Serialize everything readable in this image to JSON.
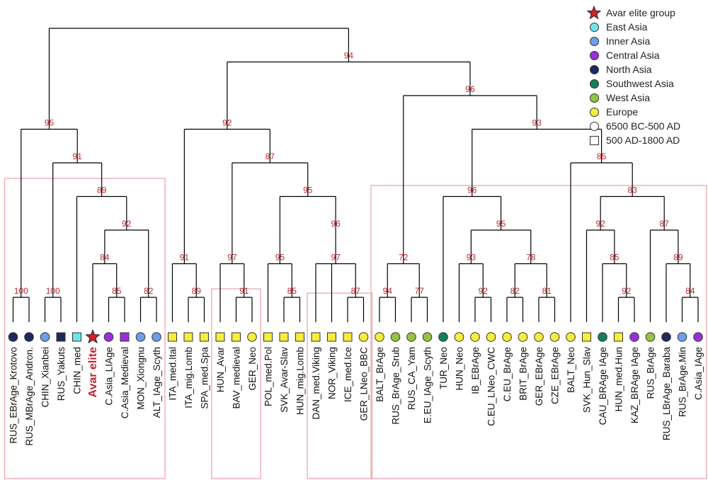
{
  "colors": {
    "East Asia": "#6fe3ee",
    "Inner Asia": "#6f9ee8",
    "Central Asia": "#9a2fd8",
    "North Asia": "#1d2a5e",
    "Southwest Asia": "#13805e",
    "West Asia": "#93c443",
    "Europe": "#f5ee3a",
    "star": "#d61f26",
    "label_red": "#c0262d",
    "box": "#e8a1a8",
    "line": "#000000"
  },
  "legend": [
    {
      "label": "Avar elite group",
      "symbol": "star",
      "icon": "star-icon"
    },
    {
      "label": "East Asia",
      "symbol": "circle",
      "region": "East Asia"
    },
    {
      "label": "Inner Asia",
      "symbol": "circle",
      "region": "Inner Asia"
    },
    {
      "label": "Central Asia",
      "symbol": "circle",
      "region": "Central Asia"
    },
    {
      "label": "North Asia",
      "symbol": "circle",
      "region": "North Asia"
    },
    {
      "label": "Southwest Asia",
      "symbol": "circle",
      "region": "Southwest Asia"
    },
    {
      "label": "West Asia",
      "symbol": "circle",
      "region": "West Asia"
    },
    {
      "label": "Europe",
      "symbol": "circle",
      "region": "Europe"
    },
    {
      "label": "6500 BC-500 AD",
      "symbol": "open-circle"
    },
    {
      "label": "500 AD-1800 AD",
      "symbol": "open-square"
    }
  ],
  "leaves": [
    {
      "id": "L1",
      "label": "RUS_EBrAge_Krotovo",
      "region": "North Asia",
      "shape": "circle"
    },
    {
      "id": "L2",
      "label": "RUS_MBrAge_Andron.",
      "region": "North Asia",
      "shape": "circle"
    },
    {
      "id": "L3",
      "label": "CHIN_Xianbei",
      "region": "Inner Asia",
      "shape": "circle"
    },
    {
      "id": "L4",
      "label": "RUS_Yakuts",
      "region": "North Asia",
      "shape": "square"
    },
    {
      "id": "L5",
      "label": "CHIN_med",
      "region": "East Asia",
      "shape": "square"
    },
    {
      "id": "L6",
      "label": "Avar elite",
      "region": "Avar",
      "shape": "star",
      "highlight": true
    },
    {
      "id": "L7",
      "label": "C.Asia_LIAge",
      "region": "Central Asia",
      "shape": "circle"
    },
    {
      "id": "L8",
      "label": "C.Asia_Medieval",
      "region": "Central Asia",
      "shape": "square"
    },
    {
      "id": "L9",
      "label": "MON_Xiongnu",
      "region": "Inner Asia",
      "shape": "circle"
    },
    {
      "id": "L10",
      "label": "ALT_IAge_Scyth",
      "region": "Inner Asia",
      "shape": "circle"
    },
    {
      "id": "L11",
      "label": "ITA_med.Ital",
      "region": "Europe",
      "shape": "square"
    },
    {
      "id": "L12",
      "label": "ITA_mig.Lomb",
      "region": "Europe",
      "shape": "square"
    },
    {
      "id": "L13",
      "label": "SPA_med.Spa",
      "region": "Europe",
      "shape": "square"
    },
    {
      "id": "L14",
      "label": "HUN_Avar",
      "region": "Europe",
      "shape": "square"
    },
    {
      "id": "L15",
      "label": "BAV_medieval",
      "region": "Europe",
      "shape": "square"
    },
    {
      "id": "L16",
      "label": "GER_Neo",
      "region": "Europe",
      "shape": "circle"
    },
    {
      "id": "L17",
      "label": "POL_med.Pol",
      "region": "Europe",
      "shape": "square"
    },
    {
      "id": "L18",
      "label": "SVK_Avar-Slav",
      "region": "Europe",
      "shape": "square"
    },
    {
      "id": "L19",
      "label": "HUN_mig.Lomb",
      "region": "Europe",
      "shape": "square"
    },
    {
      "id": "L20",
      "label": "DAN_med.Viking",
      "region": "Europe",
      "shape": "square"
    },
    {
      "id": "L21",
      "label": "NOR_Viking",
      "region": "Europe",
      "shape": "square"
    },
    {
      "id": "L22",
      "label": "ICE_med.Ice",
      "region": "Europe",
      "shape": "square"
    },
    {
      "id": "L23",
      "label": "GER_LNeo_BBC",
      "region": "Europe",
      "shape": "circle"
    },
    {
      "id": "L24",
      "label": "BALT_BrAge",
      "region": "Europe",
      "shape": "circle"
    },
    {
      "id": "L25",
      "label": "RUS_BrAge_Srub",
      "region": "West Asia",
      "shape": "circle"
    },
    {
      "id": "L26",
      "label": "RUS_CA_Yam",
      "region": "West Asia",
      "shape": "circle"
    },
    {
      "id": "L27",
      "label": "E.EU_IAge_Scyth",
      "region": "West Asia",
      "shape": "circle"
    },
    {
      "id": "L28",
      "label": "TUR_Neo",
      "region": "Southwest Asia",
      "shape": "circle"
    },
    {
      "id": "L29",
      "label": "HUN_Neo",
      "region": "Europe",
      "shape": "circle"
    },
    {
      "id": "L30",
      "label": "IB_EBrAge",
      "region": "Europe",
      "shape": "circle"
    },
    {
      "id": "L31",
      "label": "C.EU_LNeo_CWC",
      "region": "Europe",
      "shape": "circle"
    },
    {
      "id": "L32",
      "label": "C.EU_BrAge",
      "region": "Europe",
      "shape": "circle"
    },
    {
      "id": "L33",
      "label": "BRIT_BrAge",
      "region": "Europe",
      "shape": "circle"
    },
    {
      "id": "L34",
      "label": "GER_EBrAge",
      "region": "Europe",
      "shape": "circle"
    },
    {
      "id": "L35",
      "label": "CZE_EBrAge",
      "region": "Europe",
      "shape": "circle"
    },
    {
      "id": "L36",
      "label": "BALT_Neo",
      "region": "Europe",
      "shape": "circle"
    },
    {
      "id": "L37",
      "label": "SVK_Hun_Slav",
      "region": "Europe",
      "shape": "square"
    },
    {
      "id": "L38",
      "label": "CAU_BRAge IAge",
      "region": "Southwest Asia",
      "shape": "circle"
    },
    {
      "id": "L39",
      "label": "HUN_med.Hun",
      "region": "Europe",
      "shape": "square"
    },
    {
      "id": "L40",
      "label": "KAZ_BRAge IAge",
      "region": "Central Asia",
      "shape": "circle"
    },
    {
      "id": "L41",
      "label": "RUS_BrAge",
      "region": "West Asia",
      "shape": "circle"
    },
    {
      "id": "L42",
      "label": "RUS_LBrAge_Baraba",
      "region": "North Asia",
      "shape": "circle"
    },
    {
      "id": "L43",
      "label": "RUS_BrAge.Min",
      "region": "Inner Asia",
      "shape": "circle"
    },
    {
      "id": "L44",
      "label": "C.Asia_IAge",
      "region": "Central Asia",
      "shape": "circle"
    }
  ],
  "tree": {
    "ch": [
      {
        "ch": [
          {
            "ch": [
              "L1",
              "L2"
            ],
            "bs": "100"
          },
          {
            "ch": [
              {
                "ch": [
                  "L3",
                  "L4"
                ],
                "bs": "100"
              },
              {
                "ch": [
                  "L5",
                  {
                    "ch": [
                      {
                        "ch": [
                          "L6",
                          {
                            "ch": [
                              "L7",
                              "L8"
                            ],
                            "bs": "85"
                          }
                        ],
                        "bs": "84"
                      },
                      {
                        "ch": [
                          "L9",
                          "L10"
                        ],
                        "bs": "82"
                      }
                    ],
                    "bs": "92"
                  }
                ],
                "bs": "89"
              }
            ],
            "bs": "91"
          }
        ],
        "bs": "95"
      },
      {
        "ch": [
          {
            "ch": [
              {
                "ch": [
                  "L11",
                  {
                    "ch": [
                      "L12",
                      "L13"
                    ],
                    "bs": "89"
                  }
                ],
                "bs": "91"
              },
              {
                "ch": [
                  {
                    "ch": [
                      "L14",
                      {
                        "ch": [
                          "L15",
                          "L16"
                        ],
                        "bs": "91"
                      }
                    ],
                    "bs": "97"
                  },
                  {
                    "ch": [
                      {
                        "ch": [
                          "L17",
                          {
                            "ch": [
                              "L18",
                              "L19"
                            ],
                            "bs": "85"
                          }
                        ],
                        "bs": "95"
                      },
                      {
                        "ch": [
                          {
                            "ch": [
                              "L20",
                              "L21",
                              {
                                "ch": [
                                  "L22",
                                  "L23"
                                ],
                                "bs": "87"
                              }
                            ],
                            "bs": "97"
                          }
                        ],
                        "bs": "96"
                      }
                    ],
                    "bs": "95"
                  }
                ],
                "bs": "87"
              }
            ],
            "bs": "92"
          },
          {
            "ch": [
              {
                "ch": [
                  {
                    "ch": [
                      "L24",
                      "L25"
                    ],
                    "bs": "94"
                  },
                  {
                    "ch": [
                      "L26",
                      "L27"
                    ],
                    "bs": "77"
                  }
                ],
                "bs": "72"
              },
              {
                "ch": [
                  {
                    "ch": [
                      "L28",
                      {
                        "ch": [
                          {
                            "ch": [
                              "L29",
                              {
                                "ch": [
                                  "L30",
                                  "L31"
                                ],
                                "bs": "92"
                              }
                            ],
                            "bs": "93"
                          },
                          {
                            "ch": [
                              {
                                "ch": [
                                  "L32",
                                  "L33"
                                ],
                                "bs": "82"
                              },
                              {
                                "ch": [
                                  "L34",
                                  "L35"
                                ],
                                "bs": "81"
                              }
                            ],
                            "bs": "78"
                          }
                        ],
                        "bs": "95"
                      }
                    ],
                    "bs": "96"
                  },
                  {
                    "ch": [
                      "L36",
                      {
                        "ch": [
                          {
                            "ch": [
                              "L37",
                              {
                                "ch": [
                                  "L38",
                                  {
                                    "ch": [
                                      "L39",
                                      "L40"
                                    ],
                                    "bs": "92"
                                  }
                                ],
                                "bs": "85"
                              }
                            ],
                            "bs": "92"
                          },
                          {
                            "ch": [
                              "L41",
                              {
                                "ch": [
                                  "L42",
                                  {
                                    "ch": [
                                      "L43",
                                      "L44"
                                    ],
                                    "bs": "84"
                                  }
                                ],
                                "bs": "89"
                              }
                            ],
                            "bs": "87"
                          }
                        ],
                        "bs": "83"
                      }
                    ],
                    "bs": "85"
                  }
                ],
                "bs": "93"
              }
            ],
            "bs": "96"
          }
        ],
        "bs": "94"
      }
    ]
  }
}
